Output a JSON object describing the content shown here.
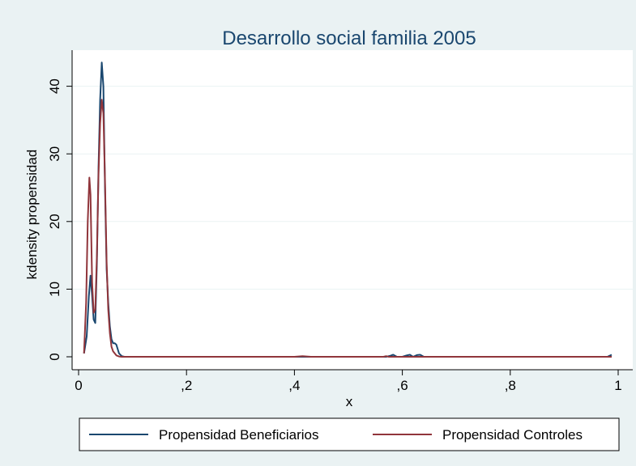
{
  "chart_data": {
    "type": "line",
    "title": "Desarrollo social familia 2005",
    "xlabel": "x",
    "ylabel": "kdensity propensidad",
    "xlim": [
      0,
      1
    ],
    "ylim": [
      0,
      45
    ],
    "xticks": [
      {
        "value": 0,
        "label": "0"
      },
      {
        "value": 0.2,
        "label": ",2"
      },
      {
        "value": 0.4,
        "label": ",4"
      },
      {
        "value": 0.6,
        "label": ",6"
      },
      {
        "value": 0.8,
        "label": ",8"
      },
      {
        "value": 1,
        "label": "1"
      }
    ],
    "yticks": [
      {
        "value": 0,
        "label": "0"
      },
      {
        "value": 10,
        "label": "10"
      },
      {
        "value": 20,
        "label": "20"
      },
      {
        "value": 30,
        "label": "30"
      },
      {
        "value": 40,
        "label": "40"
      }
    ],
    "grid": true,
    "legend_position": "bottom",
    "series": [
      {
        "name": "Propensidad Beneficiarios",
        "color": "#1a476f",
        "x": [
          0.01,
          0.015,
          0.019,
          0.022,
          0.025,
          0.028,
          0.031,
          0.034,
          0.037,
          0.04,
          0.043,
          0.046,
          0.049,
          0.052,
          0.055,
          0.058,
          0.061,
          0.064,
          0.067,
          0.07,
          0.075,
          0.08,
          0.085,
          0.09,
          0.1,
          0.2,
          0.3,
          0.4,
          0.5,
          0.57,
          0.578,
          0.583,
          0.59,
          0.6,
          0.608,
          0.614,
          0.62,
          0.627,
          0.633,
          0.64,
          0.65,
          0.7,
          0.8,
          0.9,
          0.98,
          0.988
        ],
        "y": [
          0.5,
          3,
          9,
          12,
          9,
          5.5,
          5,
          14,
          28,
          38,
          43.5,
          40,
          25,
          13,
          8,
          4.5,
          2.6,
          2,
          2,
          1.8,
          0.5,
          0.1,
          0,
          0,
          0,
          0,
          0,
          0,
          0,
          0,
          0.15,
          0.3,
          0,
          0,
          0.2,
          0.3,
          0,
          0.25,
          0.3,
          0,
          0,
          0,
          0,
          0,
          0,
          0.3
        ]
      },
      {
        "name": "Propensidad Controles",
        "color": "#90353b",
        "x": [
          0.01,
          0.014,
          0.017,
          0.02,
          0.022,
          0.025,
          0.028,
          0.031,
          0.034,
          0.037,
          0.04,
          0.043,
          0.046,
          0.049,
          0.052,
          0.055,
          0.058,
          0.061,
          0.064,
          0.067,
          0.07,
          0.075,
          0.08,
          0.085,
          0.09,
          0.1,
          0.2,
          0.3,
          0.4,
          0.415,
          0.43,
          0.5,
          0.565,
          0.57,
          0.575,
          0.6,
          0.7,
          0.8,
          0.9,
          0.988
        ],
        "y": [
          0.5,
          8,
          20,
          26.5,
          24,
          11,
          6.5,
          7,
          15,
          27,
          34.5,
          38,
          36,
          26,
          14,
          7,
          3.5,
          1.5,
          0.8,
          0.5,
          0.2,
          0.05,
          0,
          0,
          0,
          0,
          0,
          0,
          0,
          0.1,
          0,
          0,
          0,
          0.1,
          0,
          0,
          0,
          0,
          0,
          0
        ]
      }
    ]
  }
}
